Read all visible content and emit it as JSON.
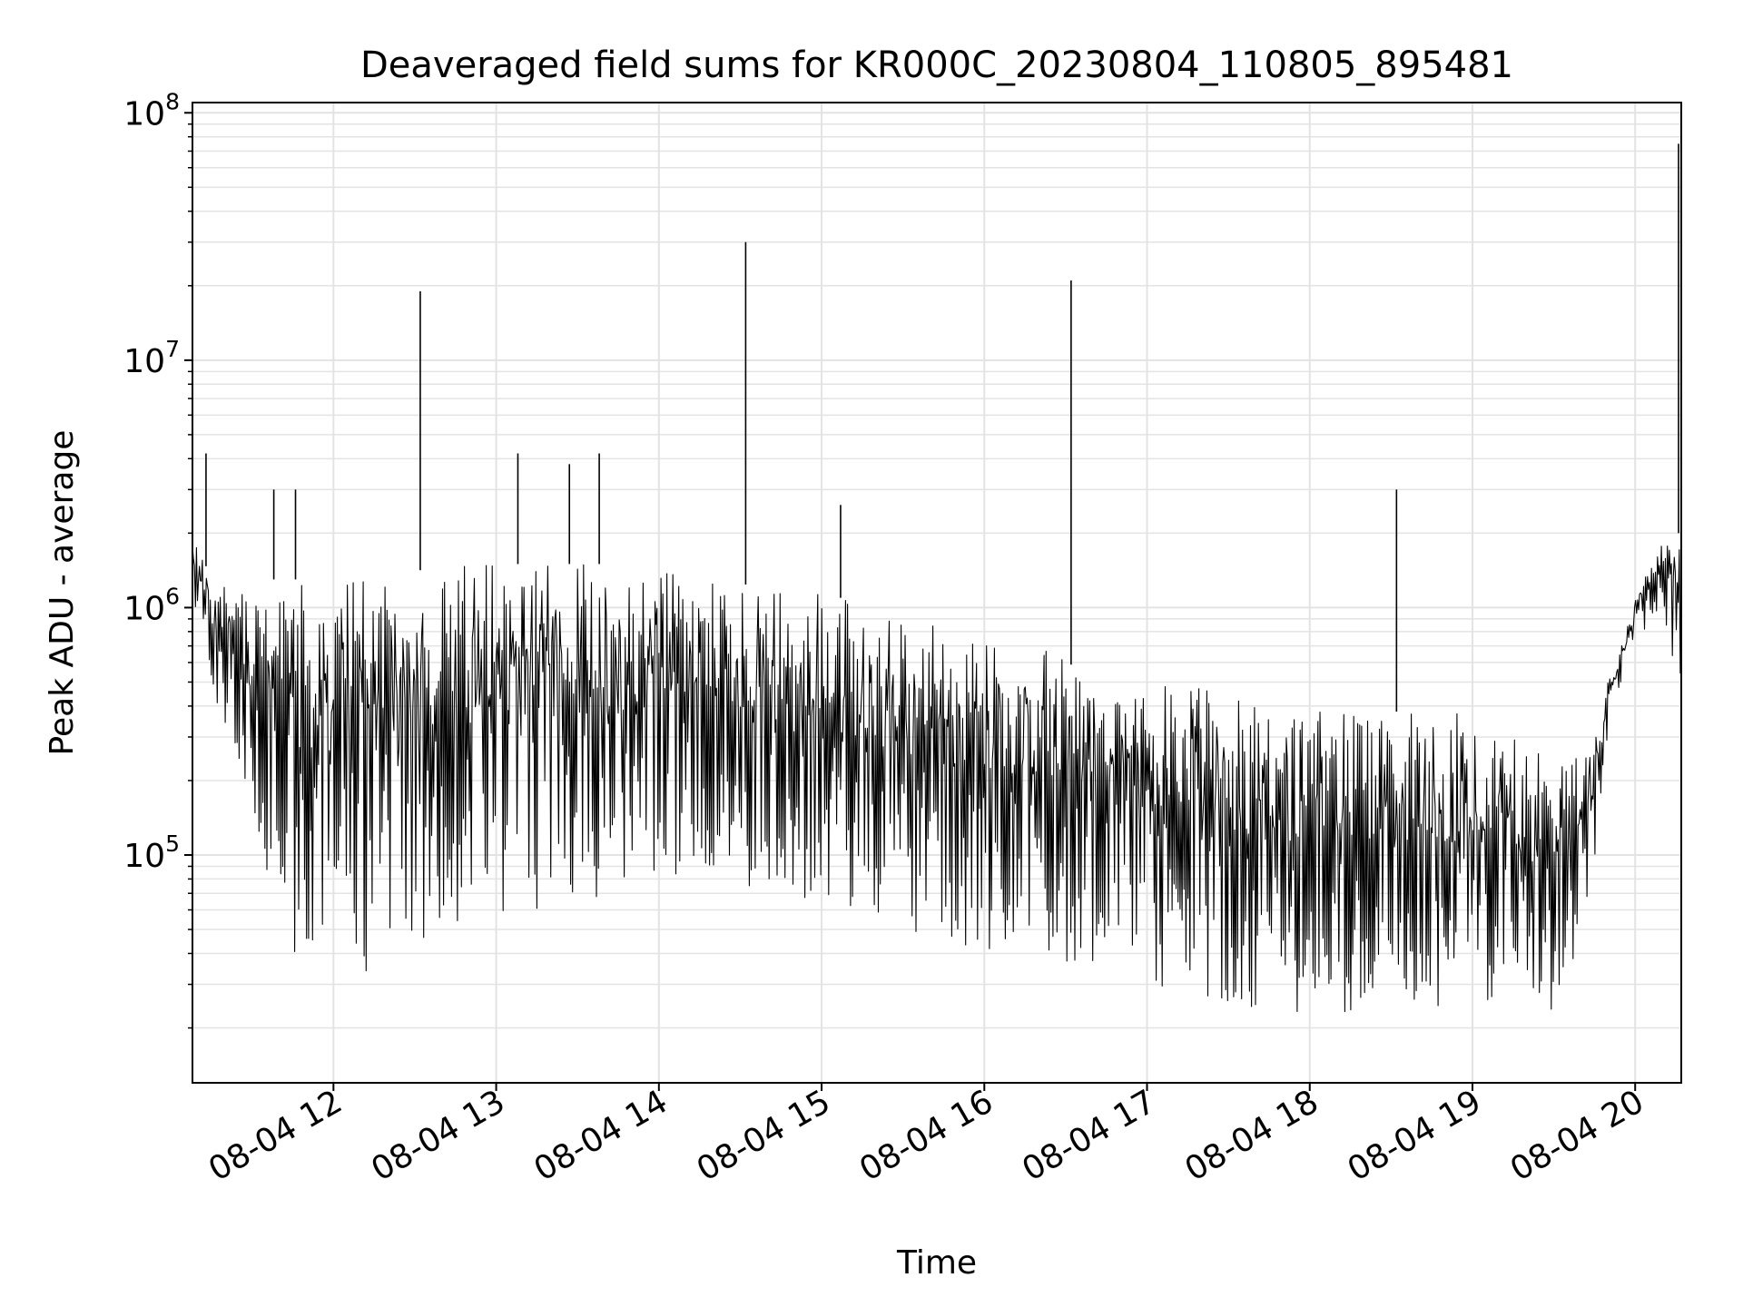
{
  "chart_data": {
    "type": "line",
    "title": "Deaveraged field sums for KR000C_20230804_110805_895481",
    "xlabel": "Time",
    "ylabel": "Peak ADU - average",
    "yscale": "log",
    "ylim": [
      12000,
      110000000
    ],
    "xlim": [
      "2023-08-04 11:08",
      "2023-08-04 20:17"
    ],
    "grid": true,
    "line_color": "#000000",
    "x_ticks": [
      {
        "t": "2023-08-04 12:00",
        "label": "08-04 12"
      },
      {
        "t": "2023-08-04 13:00",
        "label": "08-04 13"
      },
      {
        "t": "2023-08-04 14:00",
        "label": "08-04 14"
      },
      {
        "t": "2023-08-04 15:00",
        "label": "08-04 15"
      },
      {
        "t": "2023-08-04 16:00",
        "label": "08-04 16"
      },
      {
        "t": "2023-08-04 17:00",
        "label": "08-04 17"
      },
      {
        "t": "2023-08-04 18:00",
        "label": "08-04 18"
      },
      {
        "t": "2023-08-04 19:00",
        "label": "08-04 19"
      },
      {
        "t": "2023-08-04 20:00",
        "label": "08-04 20"
      }
    ],
    "y_ticks": [
      {
        "value": 100000,
        "base": "10",
        "exp": "5"
      },
      {
        "value": 1000000,
        "base": "10",
        "exp": "6"
      },
      {
        "value": 10000000,
        "base": "10",
        "exp": "7"
      },
      {
        "value": 100000000,
        "base": "10",
        "exp": "8"
      }
    ],
    "envelope": [
      {
        "t": "2023-08-04 11:08",
        "upper": 2000000,
        "lower": 1100000
      },
      {
        "t": "2023-08-04 11:15",
        "upper": 1300000,
        "lower": 500000
      },
      {
        "t": "2023-08-04 11:25",
        "upper": 1400000,
        "lower": 200000
      },
      {
        "t": "2023-08-04 11:35",
        "upper": 1300000,
        "lower": 80000
      },
      {
        "t": "2023-08-04 11:45",
        "upper": 1300000,
        "lower": 40000
      },
      {
        "t": "2023-08-04 12:00",
        "upper": 1300000,
        "lower": 32000
      },
      {
        "t": "2023-08-04 12:20",
        "upper": 1300000,
        "lower": 35000
      },
      {
        "t": "2023-08-04 12:40",
        "upper": 1500000,
        "lower": 45000
      },
      {
        "t": "2023-08-04 13:00",
        "upper": 1500000,
        "lower": 55000
      },
      {
        "t": "2023-08-04 13:20",
        "upper": 1500000,
        "lower": 60000
      },
      {
        "t": "2023-08-04 13:40",
        "upper": 1500000,
        "lower": 65000
      },
      {
        "t": "2023-08-04 14:00",
        "upper": 1400000,
        "lower": 80000
      },
      {
        "t": "2023-08-04 14:20",
        "upper": 1300000,
        "lower": 90000
      },
      {
        "t": "2023-08-04 14:40",
        "upper": 1200000,
        "lower": 65000
      },
      {
        "t": "2023-08-04 15:00",
        "upper": 1150000,
        "lower": 60000
      },
      {
        "t": "2023-08-04 15:20",
        "upper": 1000000,
        "lower": 55000
      },
      {
        "t": "2023-08-04 15:40",
        "upper": 850000,
        "lower": 45000
      },
      {
        "t": "2023-08-04 16:00",
        "upper": 750000,
        "lower": 40000
      },
      {
        "t": "2023-08-04 16:20",
        "upper": 750000,
        "lower": 38000
      },
      {
        "t": "2023-08-04 16:40",
        "upper": 500000,
        "lower": 35000
      },
      {
        "t": "2023-08-04 17:00",
        "upper": 450000,
        "lower": 30000
      },
      {
        "t": "2023-08-04 17:20",
        "upper": 550000,
        "lower": 26000
      },
      {
        "t": "2023-08-04 17:40",
        "upper": 400000,
        "lower": 24000
      },
      {
        "t": "2023-08-04 18:00",
        "upper": 380000,
        "lower": 22000
      },
      {
        "t": "2023-08-04 18:20",
        "upper": 380000,
        "lower": 23000
      },
      {
        "t": "2023-08-04 18:40",
        "upper": 380000,
        "lower": 24000
      },
      {
        "t": "2023-08-04 19:00",
        "upper": 400000,
        "lower": 24000
      },
      {
        "t": "2023-08-04 19:20",
        "upper": 300000,
        "lower": 22000
      },
      {
        "t": "2023-08-04 19:35",
        "upper": 250000,
        "lower": 25000
      },
      {
        "t": "2023-08-04 19:45",
        "upper": 300000,
        "lower": 90000
      },
      {
        "t": "2023-08-04 19:50",
        "upper": 500000,
        "lower": 300000
      },
      {
        "t": "2023-08-04 20:00",
        "upper": 1100000,
        "lower": 700000
      },
      {
        "t": "2023-08-04 20:10",
        "upper": 2000000,
        "lower": 1000000
      },
      {
        "t": "2023-08-04 20:16",
        "upper": 2000000,
        "lower": 400000
      }
    ],
    "spikes": [
      {
        "t": "2023-08-04 11:13",
        "y": 4200000
      },
      {
        "t": "2023-08-04 11:38",
        "y": 3000000
      },
      {
        "t": "2023-08-04 11:46",
        "y": 3000000
      },
      {
        "t": "2023-08-04 12:32",
        "y": 19000000
      },
      {
        "t": "2023-08-04 13:08",
        "y": 4200000
      },
      {
        "t": "2023-08-04 13:27",
        "y": 3800000
      },
      {
        "t": "2023-08-04 13:38",
        "y": 4200000
      },
      {
        "t": "2023-08-04 14:32",
        "y": 30000000
      },
      {
        "t": "2023-08-04 15:07",
        "y": 2600000
      },
      {
        "t": "2023-08-04 16:32",
        "y": 21000000
      },
      {
        "t": "2023-08-04 18:32",
        "y": 3000000
      },
      {
        "t": "2023-08-04 20:16",
        "y": 75000000
      }
    ]
  }
}
